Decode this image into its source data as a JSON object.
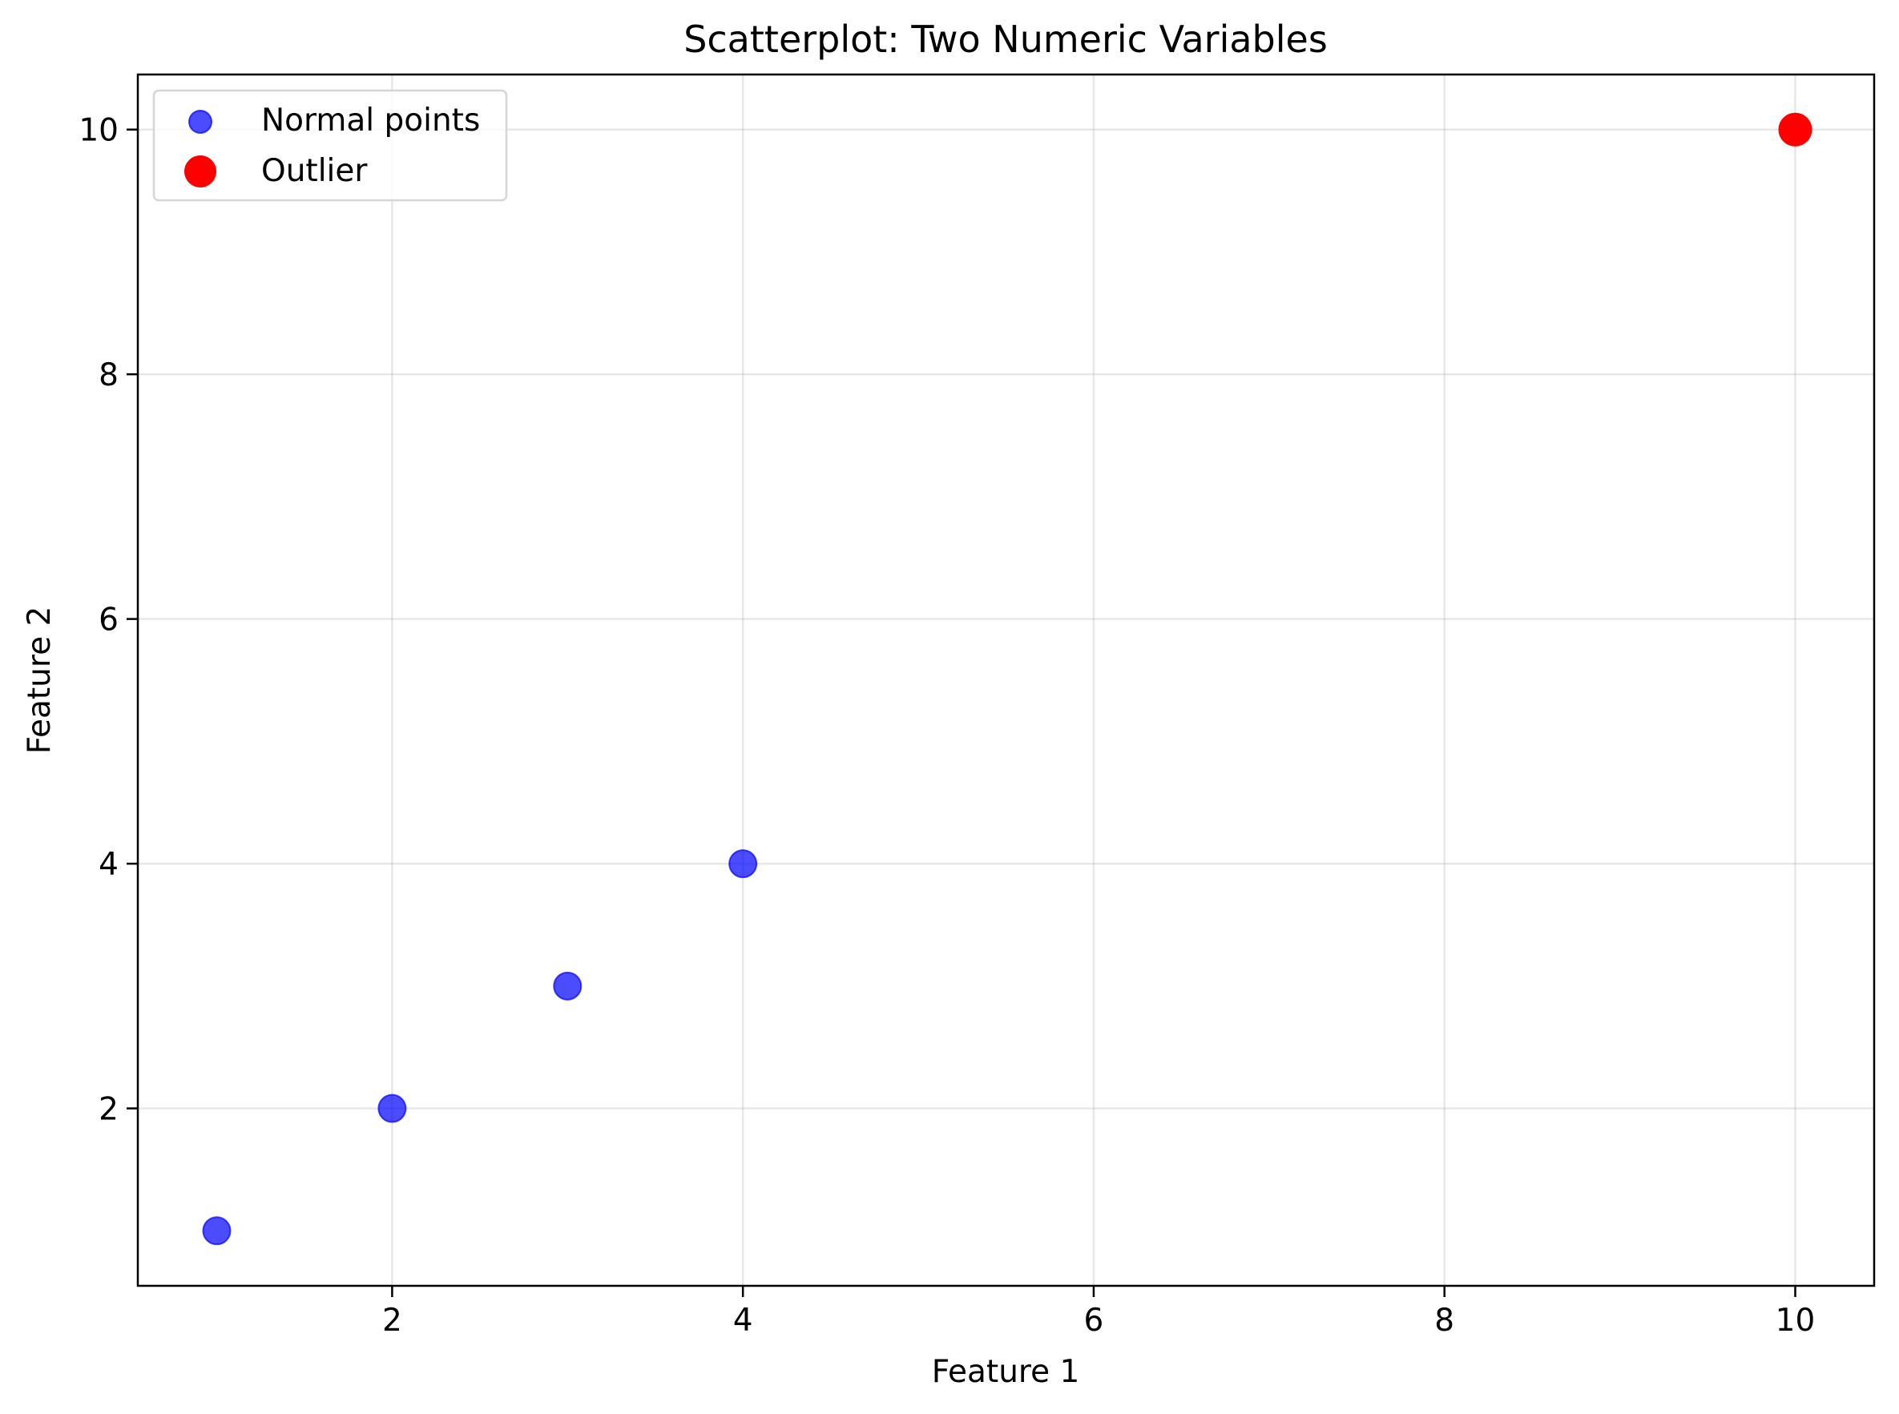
{
  "chart_data": {
    "type": "scatter",
    "title": "Scatterplot: Two Numeric Variables",
    "xlabel": "Feature 1",
    "ylabel": "Feature 2",
    "xlim": [
      0.55,
      10.45
    ],
    "ylim": [
      0.55,
      10.45
    ],
    "xticks": [
      2,
      4,
      6,
      8,
      10
    ],
    "yticks": [
      2,
      4,
      6,
      8,
      10
    ],
    "grid": true,
    "legend_position": "upper-left",
    "series": [
      {
        "name": "Normal points",
        "color": "#0000ff",
        "alpha": 0.7,
        "x": [
          1,
          2,
          3,
          4
        ],
        "y": [
          1,
          2,
          3,
          4
        ]
      },
      {
        "name": "Outlier",
        "color": "#ff0000",
        "alpha": 1,
        "x": [
          10
        ],
        "y": [
          10
        ]
      }
    ]
  }
}
